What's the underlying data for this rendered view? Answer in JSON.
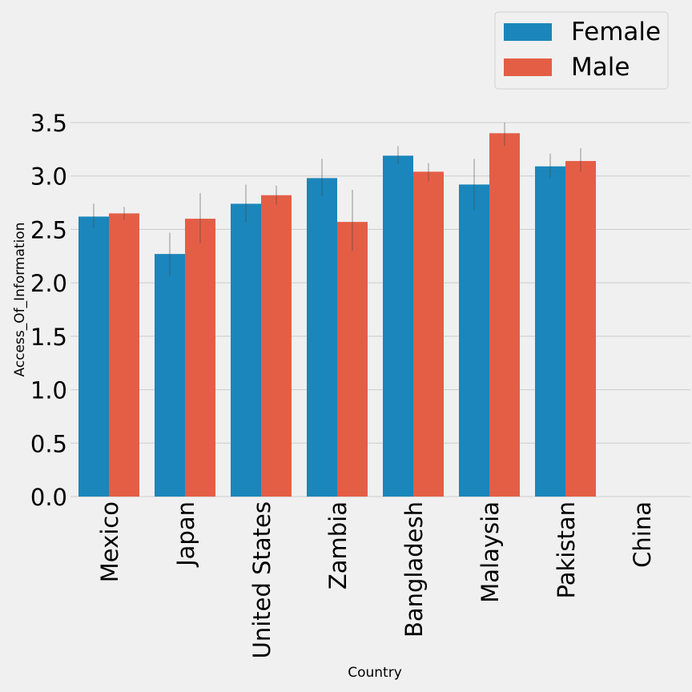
{
  "chart_data": {
    "type": "bar",
    "title": "",
    "xlabel": "Country",
    "ylabel": "Access_Of_Information",
    "ylim": [
      0,
      3.5
    ],
    "yticks": [
      "0.0",
      "0.5",
      "1.0",
      "1.5",
      "2.0",
      "2.5",
      "3.0",
      "3.5"
    ],
    "categories": [
      "Mexico",
      "Japan",
      "United States",
      "Zambia",
      "Bangladesh",
      "Malaysia",
      "Pakistan",
      "China"
    ],
    "series": [
      {
        "name": "Female",
        "color": "#1a86bb",
        "values": [
          2.62,
          2.27,
          2.74,
          2.98,
          3.19,
          2.92,
          3.09,
          null
        ],
        "error_low": [
          2.52,
          2.07,
          2.57,
          2.81,
          3.11,
          2.68,
          2.98,
          null
        ],
        "error_high": [
          2.74,
          2.47,
          2.92,
          3.16,
          3.28,
          3.16,
          3.21,
          null
        ]
      },
      {
        "name": "Male",
        "color": "#e45e46",
        "values": [
          2.65,
          2.6,
          2.82,
          2.57,
          3.04,
          3.4,
          3.14,
          null
        ],
        "error_low": [
          2.59,
          2.37,
          2.73,
          2.3,
          2.95,
          3.28,
          3.04,
          null
        ],
        "error_high": [
          2.71,
          2.84,
          2.91,
          2.87,
          3.12,
          3.5,
          3.26,
          null
        ]
      }
    ],
    "grid": "horizontal",
    "legend": "top-right"
  }
}
